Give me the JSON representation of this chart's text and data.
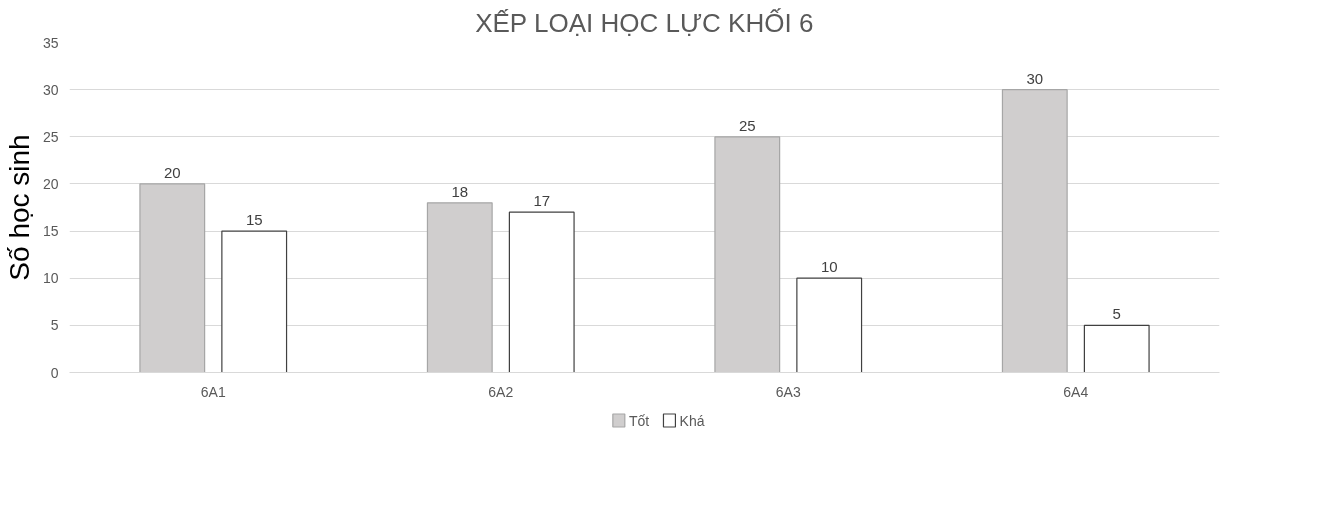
{
  "chart_data": {
    "type": "bar",
    "title": "XẾP LOẠI HỌC LỰC KHỐI 6",
    "ylabel": "Số học sinh",
    "categories": [
      "6A1",
      "6A2",
      "6A3",
      "6A4"
    ],
    "series": [
      {
        "name": "Tốt",
        "color": "#d0cece",
        "values": [
          20,
          18,
          25,
          30
        ]
      },
      {
        "name": "Khá",
        "color": "#ffffff",
        "values": [
          15,
          17,
          10,
          5
        ]
      }
    ],
    "ylim": [
      0,
      35
    ],
    "yticks": [
      0,
      5,
      10,
      15,
      20,
      25,
      30,
      35
    ],
    "grid": "y",
    "legend": "bottom",
    "data_labels": true
  }
}
